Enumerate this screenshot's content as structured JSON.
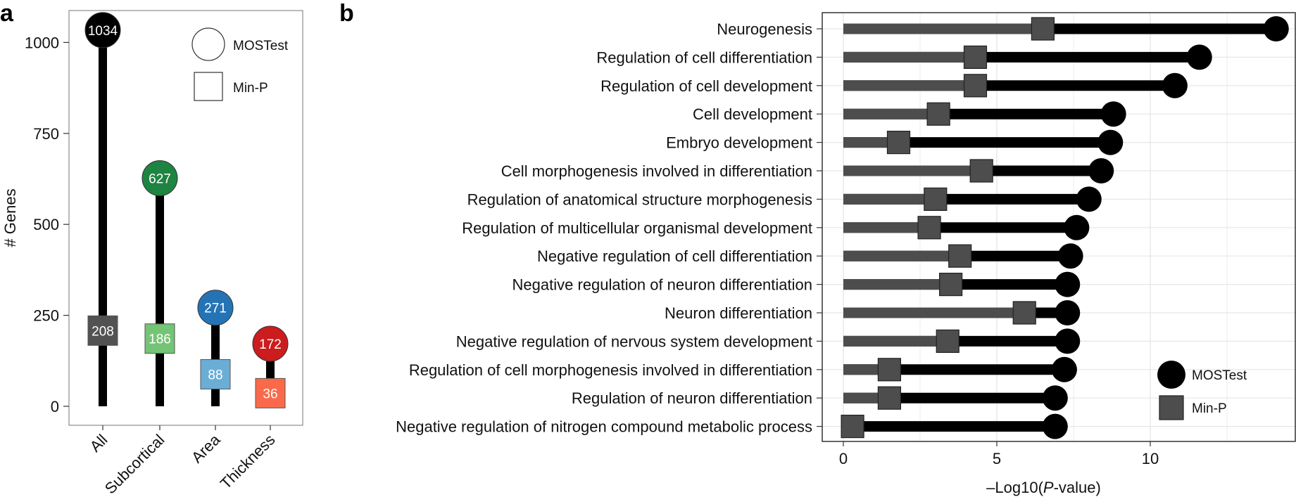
{
  "panel_a_letter": "a",
  "panel_b_letter": "b",
  "chart_data": [
    {
      "type": "lollipop",
      "panel": "a",
      "ylabel": "# Genes",
      "ylim": [
        0,
        1080
      ],
      "yticks": [
        0,
        250,
        500,
        750,
        1000
      ],
      "categories": [
        "All",
        "Subcortical",
        "Area",
        "Thickness"
      ],
      "series": [
        {
          "name": "MOSTest",
          "marker": "circle",
          "values": [
            1034,
            627,
            271,
            172
          ]
        },
        {
          "name": "Min-P",
          "marker": "square",
          "values": [
            208,
            186,
            88,
            36
          ]
        }
      ],
      "colors_mostest": [
        "#000000",
        "#1e8441",
        "#2474b5",
        "#cb1c1e"
      ],
      "colors_minp": [
        "#525252",
        "#74c476",
        "#6aaed6",
        "#fa6a4a"
      ],
      "legend": {
        "placement": "top-right",
        "entries": [
          "MOSTest",
          "Min-P"
        ]
      },
      "grid": false
    },
    {
      "type": "lollipop",
      "panel": "b",
      "xlabel_prefix": "–Log10(",
      "xlabel_italic": "P",
      "xlabel_suffix": "-value)",
      "xlim": [
        -0.8,
        14.8
      ],
      "xticks": [
        0,
        5,
        10
      ],
      "categories": [
        "Neurogenesis",
        "Regulation of cell differentiation",
        "Regulation of cell development",
        "Cell development",
        "Embryo development",
        "Cell morphogenesis involved in differentiation",
        "Regulation of anatomical structure morphogenesis",
        "Regulation of multicellular organismal development",
        "Negative regulation of cell differentiation",
        "Negative regulation of neuron differentiation",
        "Neuron differentiation",
        "Negative regulation of nervous system development",
        "Regulation of cell morphogenesis involved in differentiation",
        "Regulation of neuron differentiation",
        "Negative regulation of nitrogen compound metabolic process"
      ],
      "series": [
        {
          "name": "MOSTest",
          "marker": "circle",
          "values": [
            14.1,
            11.6,
            10.8,
            8.8,
            8.7,
            8.4,
            8.0,
            7.6,
            7.4,
            7.3,
            7.3,
            7.3,
            7.2,
            6.9,
            6.9
          ]
        },
        {
          "name": "Min-P",
          "marker": "square",
          "values": [
            6.5,
            4.3,
            4.3,
            3.1,
            1.8,
            4.5,
            3.0,
            2.8,
            3.8,
            3.5,
            5.9,
            3.4,
            1.5,
            1.5,
            0.3
          ]
        }
      ],
      "colors": {
        "mostest": "#000000",
        "minp": "#4d4d4d"
      },
      "legend": {
        "placement": "bottom-right",
        "entries": [
          "MOSTest",
          "Min-P"
        ]
      },
      "grid": true
    }
  ]
}
